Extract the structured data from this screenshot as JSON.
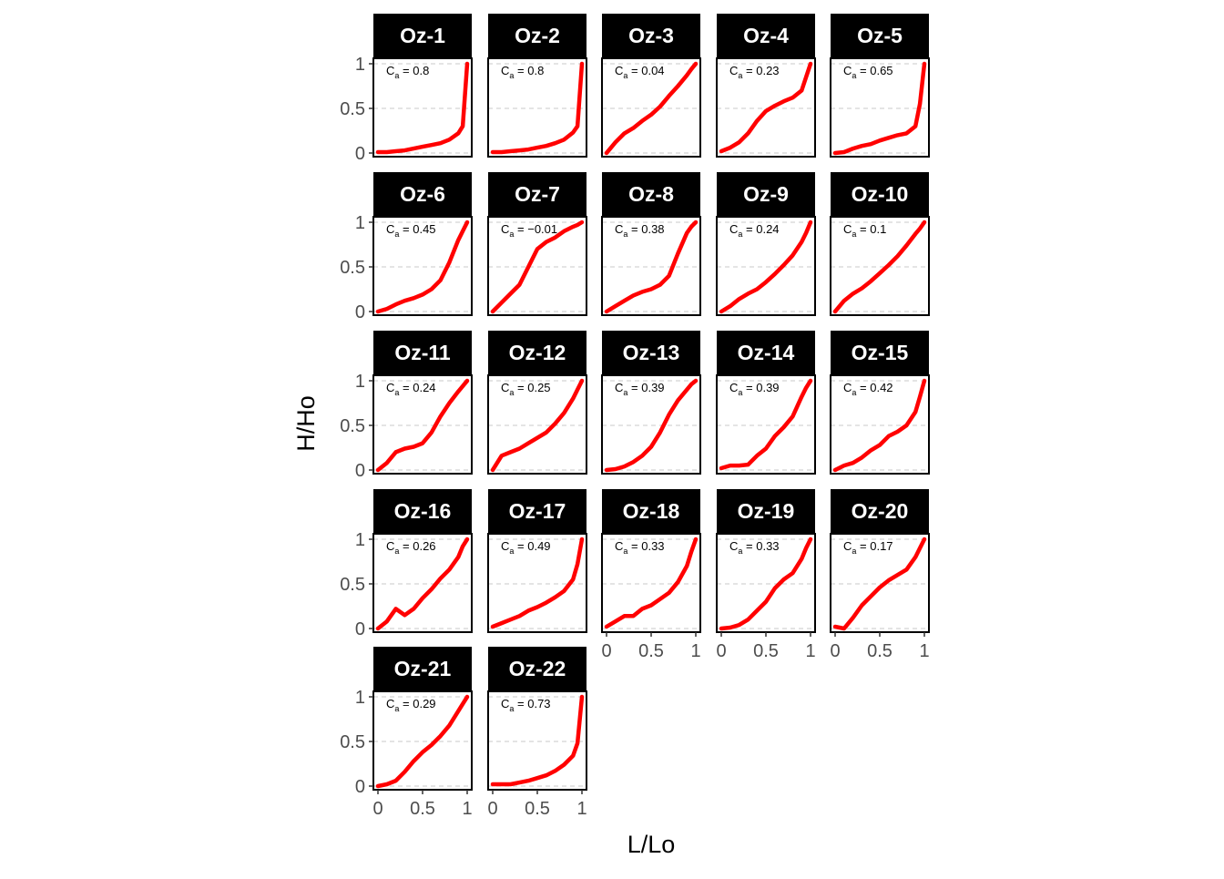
{
  "chart_data": {
    "type": "line",
    "xlabel": "L/Lo",
    "ylabel": "H/Ho",
    "xlim": [
      0,
      1
    ],
    "ylim": [
      0,
      1
    ],
    "x_ticks": [
      "0",
      "0.5",
      "1"
    ],
    "y_ticks": [
      "0",
      "0.5",
      "1"
    ],
    "grid": "horizontal dashed",
    "line_color": "#ff0000",
    "strip_color": "#000000",
    "annotation_prefix": "C",
    "annotation_subscript": "a",
    "annotation_eq": " = ",
    "x": [
      0,
      0.1,
      0.2,
      0.3,
      0.4,
      0.5,
      0.6,
      0.7,
      0.8,
      0.9,
      0.95,
      1
    ],
    "panels": [
      {
        "name": "Oz-1",
        "ca": "0.8",
        "y": [
          0.01,
          0.01,
          0.02,
          0.03,
          0.05,
          0.07,
          0.09,
          0.11,
          0.15,
          0.22,
          0.3,
          1.0
        ]
      },
      {
        "name": "Oz-2",
        "ca": "0.8",
        "y": [
          0.01,
          0.01,
          0.02,
          0.03,
          0.04,
          0.06,
          0.08,
          0.11,
          0.15,
          0.23,
          0.3,
          1.0
        ]
      },
      {
        "name": "Oz-3",
        "ca": "0.04",
        "y": [
          0.0,
          0.12,
          0.22,
          0.28,
          0.36,
          0.43,
          0.52,
          0.64,
          0.75,
          0.87,
          0.94,
          1.0
        ]
      },
      {
        "name": "Oz-4",
        "ca": "0.23",
        "y": [
          0.02,
          0.06,
          0.12,
          0.22,
          0.36,
          0.47,
          0.53,
          0.58,
          0.62,
          0.7,
          0.85,
          1.0
        ]
      },
      {
        "name": "Oz-5",
        "ca": "0.65",
        "y": [
          0.0,
          0.01,
          0.05,
          0.08,
          0.1,
          0.14,
          0.17,
          0.2,
          0.22,
          0.3,
          0.55,
          1.0
        ]
      },
      {
        "name": "Oz-6",
        "ca": "0.45",
        "y": [
          0.0,
          0.03,
          0.08,
          0.12,
          0.15,
          0.19,
          0.25,
          0.35,
          0.55,
          0.8,
          0.9,
          1.0
        ]
      },
      {
        "name": "Oz-7",
        "ca": "−0.01",
        "y": [
          0.0,
          0.1,
          0.2,
          0.3,
          0.5,
          0.7,
          0.78,
          0.83,
          0.9,
          0.95,
          0.97,
          1.0
        ]
      },
      {
        "name": "Oz-8",
        "ca": "0.38",
        "y": [
          0.0,
          0.06,
          0.12,
          0.18,
          0.22,
          0.25,
          0.3,
          0.4,
          0.65,
          0.88,
          0.95,
          1.0
        ]
      },
      {
        "name": "Oz-9",
        "ca": "0.24",
        "y": [
          0.0,
          0.06,
          0.14,
          0.2,
          0.25,
          0.33,
          0.42,
          0.52,
          0.63,
          0.78,
          0.88,
          1.0
        ]
      },
      {
        "name": "Oz-10",
        "ca": "0.1",
        "y": [
          0.0,
          0.12,
          0.2,
          0.26,
          0.34,
          0.43,
          0.52,
          0.62,
          0.74,
          0.87,
          0.93,
          1.0
        ]
      },
      {
        "name": "Oz-11",
        "ca": "0.24",
        "y": [
          0.0,
          0.08,
          0.2,
          0.24,
          0.26,
          0.3,
          0.42,
          0.6,
          0.75,
          0.88,
          0.94,
          1.0
        ]
      },
      {
        "name": "Oz-12",
        "ca": "0.25",
        "y": [
          0.0,
          0.16,
          0.2,
          0.24,
          0.3,
          0.36,
          0.42,
          0.52,
          0.64,
          0.8,
          0.9,
          1.0
        ]
      },
      {
        "name": "Oz-13",
        "ca": "0.39",
        "y": [
          0.0,
          0.01,
          0.04,
          0.09,
          0.16,
          0.26,
          0.42,
          0.62,
          0.78,
          0.9,
          0.96,
          1.0
        ]
      },
      {
        "name": "Oz-14",
        "ca": "0.39",
        "y": [
          0.02,
          0.05,
          0.05,
          0.06,
          0.16,
          0.24,
          0.38,
          0.48,
          0.6,
          0.82,
          0.92,
          1.0
        ]
      },
      {
        "name": "Oz-15",
        "ca": "0.42",
        "y": [
          0.0,
          0.05,
          0.08,
          0.14,
          0.22,
          0.28,
          0.38,
          0.43,
          0.5,
          0.65,
          0.82,
          1.0
        ]
      },
      {
        "name": "Oz-16",
        "ca": "0.26",
        "y": [
          0.0,
          0.08,
          0.22,
          0.15,
          0.22,
          0.34,
          0.44,
          0.56,
          0.66,
          0.8,
          0.92,
          1.0
        ]
      },
      {
        "name": "Oz-17",
        "ca": "0.49",
        "y": [
          0.02,
          0.06,
          0.1,
          0.14,
          0.2,
          0.24,
          0.29,
          0.35,
          0.42,
          0.55,
          0.72,
          1.0
        ]
      },
      {
        "name": "Oz-18",
        "ca": "0.33",
        "y": [
          0.02,
          0.08,
          0.14,
          0.14,
          0.22,
          0.26,
          0.33,
          0.4,
          0.52,
          0.7,
          0.86,
          1.0
        ]
      },
      {
        "name": "Oz-19",
        "ca": "0.33",
        "y": [
          0.0,
          0.01,
          0.04,
          0.1,
          0.2,
          0.3,
          0.45,
          0.55,
          0.62,
          0.78,
          0.9,
          1.0
        ]
      },
      {
        "name": "Oz-20",
        "ca": "0.17",
        "y": [
          0.02,
          0.0,
          0.12,
          0.26,
          0.36,
          0.46,
          0.54,
          0.6,
          0.66,
          0.8,
          0.9,
          1.0
        ]
      },
      {
        "name": "Oz-21",
        "ca": "0.29",
        "y": [
          0.0,
          0.02,
          0.06,
          0.16,
          0.28,
          0.38,
          0.46,
          0.56,
          0.68,
          0.84,
          0.92,
          1.0
        ]
      },
      {
        "name": "Oz-22",
        "ca": "0.73",
        "y": [
          0.02,
          0.02,
          0.02,
          0.04,
          0.06,
          0.09,
          0.12,
          0.17,
          0.24,
          0.34,
          0.48,
          1.0
        ]
      }
    ]
  }
}
